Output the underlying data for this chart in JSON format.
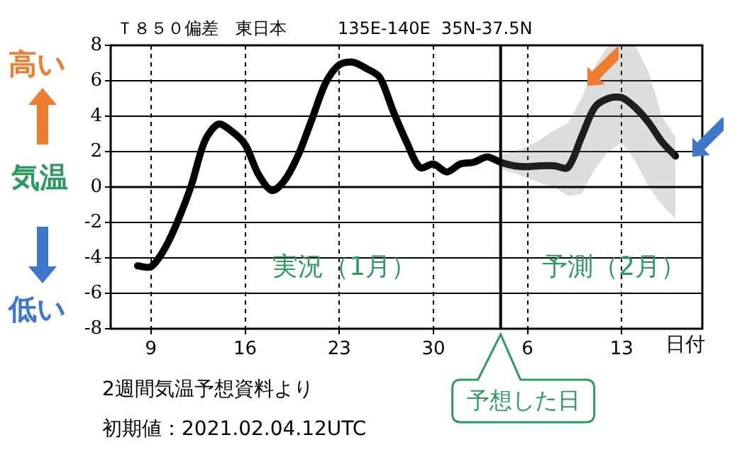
{
  "chart_data": {
    "type": "line",
    "title": "Ｔ８５０偏差　東日本　　　135E-140E  35N-37.5N",
    "xlabel": "日付",
    "ylabel": "気温",
    "x": [
      "2021-01-08",
      "2021-01-09",
      "2021-01-10",
      "2021-01-11",
      "2021-01-12",
      "2021-01-13",
      "2021-01-14",
      "2021-01-15",
      "2021-01-16",
      "2021-01-17",
      "2021-01-18",
      "2021-01-19",
      "2021-01-20",
      "2021-01-21",
      "2021-01-22",
      "2021-01-23",
      "2021-01-24",
      "2021-01-25",
      "2021-01-26",
      "2021-01-27",
      "2021-01-28",
      "2021-01-29",
      "2021-01-30",
      "2021-01-31",
      "2021-02-01",
      "2021-02-02",
      "2021-02-03",
      "2021-02-04",
      "2021-02-05",
      "2021-02-06",
      "2021-02-07",
      "2021-02-08",
      "2021-02-09",
      "2021-02-10",
      "2021-02-11",
      "2021-02-12",
      "2021-02-13",
      "2021-02-14",
      "2021-02-15",
      "2021-02-16",
      "2021-02-17"
    ],
    "series": [
      {
        "color": "#000000",
        "values": [
          -4.45,
          -4.5,
          -3.5,
          -1.9,
          0.1,
          2.6,
          3.55,
          3.15,
          2.4,
          0.7,
          -0.2,
          0.45,
          1.9,
          3.9,
          5.9,
          6.9,
          7.05,
          6.7,
          6.2,
          4.3,
          2.55,
          1.1,
          1.3,
          0.85,
          1.3,
          1.4,
          1.7,
          1.4,
          1.2,
          1.15,
          1.2,
          1.2,
          1.1,
          2.8,
          4.5,
          5.0,
          5.05,
          4.5,
          3.65,
          2.55,
          1.75
        ],
        "lower": [
          null,
          null,
          null,
          null,
          null,
          null,
          null,
          null,
          null,
          null,
          null,
          null,
          null,
          null,
          null,
          null,
          null,
          null,
          null,
          null,
          null,
          null,
          null,
          null,
          null,
          null,
          null,
          1.0,
          0.8,
          0.5,
          0.2,
          0.0,
          -0.5,
          -0.4,
          1.0,
          2.0,
          2.5,
          1.5,
          0.0,
          -1.0,
          -1.8
        ],
        "upper": [
          null,
          null,
          null,
          null,
          null,
          null,
          null,
          null,
          null,
          null,
          null,
          null,
          null,
          null,
          null,
          null,
          null,
          null,
          null,
          null,
          null,
          null,
          null,
          null,
          null,
          null,
          null,
          1.8,
          2.0,
          2.3,
          2.7,
          3.2,
          3.6,
          5.0,
          6.8,
          8,
          8,
          8,
          6.5,
          4.0,
          2.8
        ]
      }
    ],
    "xlim": [
      "2021-01-06",
      "2021-02-19"
    ],
    "xticks": [
      {
        "value": "2021-01-09",
        "label": "9"
      },
      {
        "value": "2021-01-16",
        "label": "16"
      },
      {
        "value": "2021-01-23",
        "label": "23"
      },
      {
        "value": "2021-01-30",
        "label": "30"
      },
      {
        "value": "2021-02-06",
        "label": "6"
      },
      {
        "value": "2021-02-13",
        "label": "13"
      }
    ],
    "ylim": [
      -8,
      8
    ],
    "yticks": [
      -8,
      -6,
      -4,
      -2,
      0,
      2,
      4,
      6,
      8
    ],
    "grid": true,
    "legend": false,
    "marker": "none",
    "line_style": "solid",
    "ref_lines": [
      {
        "axis": "x",
        "value": "2021-02-04",
        "label": "予想した日",
        "color": "#000000"
      }
    ],
    "annotations": [
      "高い",
      "低い",
      "2週間気温予想資料より",
      "初期値：2021.02.04.12UTC",
      "実況（1月）",
      "予測（2月）"
    ]
  }
}
